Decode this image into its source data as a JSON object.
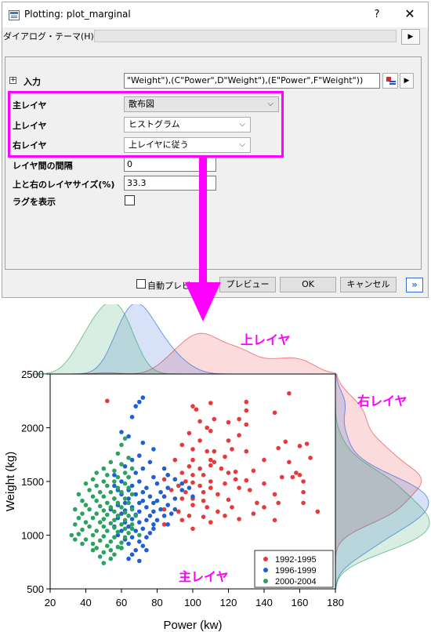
{
  "dialog": {
    "title": "Plotting: plot_marginal",
    "help": "?",
    "close": "✕",
    "theme_label": "ダイアログ・テーマ(H)",
    "theme_value": "",
    "theme_arrow": "▶",
    "input_expand": "+",
    "input_label": "入力",
    "input_value": "\"Weight\"),(C\"Power\",D\"Weight\"),(E\"Power\",F\"Weight\"))",
    "input_arrow": "▶",
    "rows": {
      "main_layer_label": "主レイヤ",
      "main_layer_value": "散布図",
      "top_layer_label": "上レイヤ",
      "top_layer_value": "ヒストグラム",
      "right_layer_label": "右レイヤ",
      "right_layer_value": "上レイヤに従う",
      "gap_label": "レイヤ間の間隔",
      "gap_value": "0",
      "size_label": "上と右のレイヤサイズ(%)",
      "size_value": "33.3",
      "rug_label": "ラグを表示"
    },
    "footer": {
      "auto_preview_label": "自動プレビュー",
      "preview_button": "プレビュー",
      "ok_button": "OK",
      "cancel_button": "キャンセル",
      "more_button": "»"
    },
    "chevron": "⌵"
  },
  "annotations": {
    "top": "上レイヤ",
    "right": "右レイヤ",
    "main": "主レイヤ"
  },
  "colors": {
    "highlight": "#ff00ff",
    "series1": "#e8383b",
    "series2": "#1f5fd6",
    "series3": "#2ca25f"
  },
  "chart_data": {
    "type": "scatter",
    "xlabel": "Power (kw)",
    "ylabel": "Weight (kg)",
    "xlim": [
      20,
      180
    ],
    "ylim": [
      500,
      2500
    ],
    "xticks": [
      20,
      40,
      60,
      80,
      100,
      120,
      140,
      160,
      180
    ],
    "yticks": [
      500,
      1000,
      1500,
      2000,
      2500
    ],
    "legend_position": "bottom-right",
    "series": [
      {
        "name": "1992-1995",
        "color": "#e8383b",
        "points": [
          [
            52,
            2250
          ],
          [
            100,
            2200
          ],
          [
            102,
            2170
          ],
          [
            110,
            2230
          ],
          [
            130,
            2240
          ],
          [
            130,
            2160
          ],
          [
            154,
            2320
          ],
          [
            146,
            2140
          ],
          [
            104,
            2060
          ],
          [
            108,
            2000
          ],
          [
            112,
            2080
          ],
          [
            120,
            2050
          ],
          [
            126,
            2080
          ],
          [
            130,
            2030
          ],
          [
            98,
            1950
          ],
          [
            110,
            1970
          ],
          [
            126,
            1930
          ],
          [
            120,
            1880
          ],
          [
            104,
            1880
          ],
          [
            94,
            1840
          ],
          [
            100,
            1800
          ],
          [
            108,
            1780
          ],
          [
            112,
            1780
          ],
          [
            122,
            1800
          ],
          [
            130,
            1780
          ],
          [
            148,
            1810
          ],
          [
            160,
            1830
          ],
          [
            152,
            1870
          ],
          [
            164,
            1850
          ],
          [
            166,
            1720
          ],
          [
            90,
            1700
          ],
          [
            100,
            1700
          ],
          [
            110,
            1700
          ],
          [
            112,
            1680
          ],
          [
            118,
            1730
          ],
          [
            140,
            1700
          ],
          [
            154,
            1680
          ],
          [
            98,
            1640
          ],
          [
            104,
            1620
          ],
          [
            110,
            1650
          ],
          [
            116,
            1620
          ],
          [
            94,
            1580
          ],
          [
            86,
            1560
          ],
          [
            100,
            1560
          ],
          [
            106,
            1560
          ],
          [
            120,
            1580
          ],
          [
            124,
            1590
          ],
          [
            134,
            1600
          ],
          [
            156,
            1540
          ],
          [
            160,
            1560
          ],
          [
            158,
            1580
          ],
          [
            162,
            1500
          ],
          [
            84,
            1520
          ],
          [
            90,
            1520
          ],
          [
            96,
            1500
          ],
          [
            100,
            1490
          ],
          [
            110,
            1500
          ],
          [
            118,
            1480
          ],
          [
            124,
            1520
          ],
          [
            130,
            1510
          ],
          [
            150,
            1540
          ],
          [
            92,
            1460
          ],
          [
            104,
            1460
          ],
          [
            110,
            1440
          ],
          [
            126,
            1440
          ],
          [
            132,
            1420
          ],
          [
            140,
            1480
          ],
          [
            88,
            1420
          ],
          [
            96,
            1400
          ],
          [
            106,
            1400
          ],
          [
            114,
            1380
          ],
          [
            146,
            1380
          ],
          [
            162,
            1400
          ],
          [
            84,
            1360
          ],
          [
            94,
            1340
          ],
          [
            100,
            1340
          ],
          [
            106,
            1320
          ],
          [
            120,
            1330
          ],
          [
            136,
            1300
          ],
          [
            148,
            1300
          ],
          [
            162,
            1300
          ],
          [
            100,
            1280
          ],
          [
            108,
            1260
          ],
          [
            122,
            1260
          ],
          [
            140,
            1260
          ],
          [
            84,
            1240
          ],
          [
            92,
            1220
          ],
          [
            114,
            1220
          ],
          [
            134,
            1200
          ],
          [
            170,
            1220
          ],
          [
            98,
            1180
          ],
          [
            106,
            1170
          ],
          [
            118,
            1180
          ],
          [
            126,
            1150
          ],
          [
            146,
            1140
          ],
          [
            94,
            1140
          ],
          [
            110,
            1120
          ],
          [
            100,
            1060
          ],
          [
            84,
            1100
          ]
        ]
      },
      {
        "name": "1996-1999",
        "color": "#1f5fd6",
        "points": [
          [
            70,
            2240
          ],
          [
            68,
            2200
          ],
          [
            72,
            2280
          ],
          [
            66,
            2100
          ],
          [
            60,
            1960
          ],
          [
            64,
            1920
          ],
          [
            72,
            1860
          ],
          [
            78,
            1800
          ],
          [
            70,
            1740
          ],
          [
            66,
            1700
          ],
          [
            76,
            1680
          ],
          [
            62,
            1640
          ],
          [
            72,
            1620
          ],
          [
            84,
            1620
          ],
          [
            68,
            1580
          ],
          [
            56,
            1560
          ],
          [
            64,
            1540
          ],
          [
            78,
            1540
          ],
          [
            86,
            1560
          ],
          [
            90,
            1520
          ],
          [
            60,
            1500
          ],
          [
            70,
            1500
          ],
          [
            80,
            1480
          ],
          [
            94,
            1480
          ],
          [
            56,
            1460
          ],
          [
            66,
            1460
          ],
          [
            74,
            1440
          ],
          [
            86,
            1440
          ],
          [
            98,
            1440
          ],
          [
            58,
            1420
          ],
          [
            64,
            1420
          ],
          [
            72,
            1400
          ],
          [
            82,
            1400
          ],
          [
            94,
            1420
          ],
          [
            60,
            1380
          ],
          [
            68,
            1380
          ],
          [
            76,
            1360
          ],
          [
            84,
            1360
          ],
          [
            90,
            1340
          ],
          [
            100,
            1360
          ],
          [
            56,
            1340
          ],
          [
            64,
            1340
          ],
          [
            72,
            1320
          ],
          [
            80,
            1320
          ],
          [
            62,
            1300
          ],
          [
            70,
            1300
          ],
          [
            78,
            1300
          ],
          [
            86,
            1280
          ],
          [
            58,
            1280
          ],
          [
            66,
            1260
          ],
          [
            74,
            1260
          ],
          [
            82,
            1240
          ],
          [
            90,
            1240
          ],
          [
            54,
            1240
          ],
          [
            62,
            1230
          ],
          [
            70,
            1220
          ],
          [
            78,
            1220
          ],
          [
            60,
            1200
          ],
          [
            68,
            1190
          ],
          [
            76,
            1180
          ],
          [
            84,
            1180
          ],
          [
            58,
            1160
          ],
          [
            66,
            1150
          ],
          [
            74,
            1140
          ],
          [
            80,
            1140
          ],
          [
            62,
            1120
          ],
          [
            70,
            1120
          ],
          [
            78,
            1100
          ],
          [
            86,
            1100
          ],
          [
            56,
            1080
          ],
          [
            64,
            1080
          ],
          [
            72,
            1060
          ],
          [
            60,
            1040
          ],
          [
            68,
            1040
          ],
          [
            76,
            1020
          ],
          [
            58,
            1000
          ],
          [
            66,
            980
          ],
          [
            74,
            980
          ],
          [
            62,
            960
          ],
          [
            70,
            940
          ],
          [
            64,
            920
          ],
          [
            72,
            900
          ],
          [
            60,
            880
          ],
          [
            68,
            860
          ],
          [
            74,
            860
          ],
          [
            66,
            820
          ],
          [
            64,
            780
          ],
          [
            70,
            760
          ],
          [
            78,
            1060
          ],
          [
            88,
            1200
          ]
        ]
      },
      {
        "name": "2000-2004",
        "color": "#2ca25f",
        "points": [
          [
            62,
            1900
          ],
          [
            60,
            1840
          ],
          [
            58,
            1760
          ],
          [
            64,
            1720
          ],
          [
            54,
            1680
          ],
          [
            60,
            1660
          ],
          [
            66,
            1620
          ],
          [
            50,
            1620
          ],
          [
            56,
            1600
          ],
          [
            62,
            1580
          ],
          [
            46,
            1580
          ],
          [
            52,
            1560
          ],
          [
            58,
            1540
          ],
          [
            64,
            1540
          ],
          [
            44,
            1520
          ],
          [
            50,
            1500
          ],
          [
            56,
            1500
          ],
          [
            62,
            1480
          ],
          [
            40,
            1480
          ],
          [
            46,
            1460
          ],
          [
            52,
            1460
          ],
          [
            58,
            1440
          ],
          [
            64,
            1440
          ],
          [
            42,
            1420
          ],
          [
            48,
            1400
          ],
          [
            54,
            1400
          ],
          [
            60,
            1400
          ],
          [
            66,
            1380
          ],
          [
            36,
            1380
          ],
          [
            44,
            1360
          ],
          [
            50,
            1360
          ],
          [
            56,
            1340
          ],
          [
            62,
            1340
          ],
          [
            38,
            1320
          ],
          [
            46,
            1320
          ],
          [
            52,
            1300
          ],
          [
            58,
            1300
          ],
          [
            64,
            1300
          ],
          [
            40,
            1280
          ],
          [
            48,
            1270
          ],
          [
            54,
            1260
          ],
          [
            60,
            1260
          ],
          [
            66,
            1240
          ],
          [
            34,
            1240
          ],
          [
            42,
            1240
          ],
          [
            50,
            1230
          ],
          [
            56,
            1220
          ],
          [
            62,
            1210
          ],
          [
            38,
            1200
          ],
          [
            46,
            1200
          ],
          [
            52,
            1190
          ],
          [
            58,
            1180
          ],
          [
            64,
            1180
          ],
          [
            36,
            1160
          ],
          [
            44,
            1160
          ],
          [
            50,
            1150
          ],
          [
            56,
            1140
          ],
          [
            62,
            1140
          ],
          [
            40,
            1120
          ],
          [
            48,
            1120
          ],
          [
            54,
            1110
          ],
          [
            60,
            1100
          ],
          [
            66,
            1100
          ],
          [
            34,
            1100
          ],
          [
            42,
            1080
          ],
          [
            50,
            1080
          ],
          [
            56,
            1070
          ],
          [
            62,
            1060
          ],
          [
            38,
            1050
          ],
          [
            46,
            1040
          ],
          [
            52,
            1040
          ],
          [
            58,
            1030
          ],
          [
            64,
            1020
          ],
          [
            36,
            1010
          ],
          [
            44,
            1000
          ],
          [
            50,
            990
          ],
          [
            56,
            980
          ],
          [
            62,
            980
          ],
          [
            40,
            960
          ],
          [
            48,
            950
          ],
          [
            54,
            940
          ],
          [
            60,
            930
          ],
          [
            44,
            920
          ],
          [
            52,
            900
          ],
          [
            58,
            890
          ],
          [
            46,
            880
          ],
          [
            54,
            860
          ],
          [
            50,
            840
          ],
          [
            56,
            820
          ],
          [
            48,
            800
          ],
          [
            54,
            780
          ],
          [
            50,
            740
          ],
          [
            32,
            1000
          ],
          [
            34,
            960
          ],
          [
            38,
            920
          ],
          [
            44,
            860
          ],
          [
            60,
            880
          ],
          [
            66,
            1060
          ],
          [
            68,
            1180
          ],
          [
            70,
            1000
          ]
        ]
      }
    ]
  }
}
